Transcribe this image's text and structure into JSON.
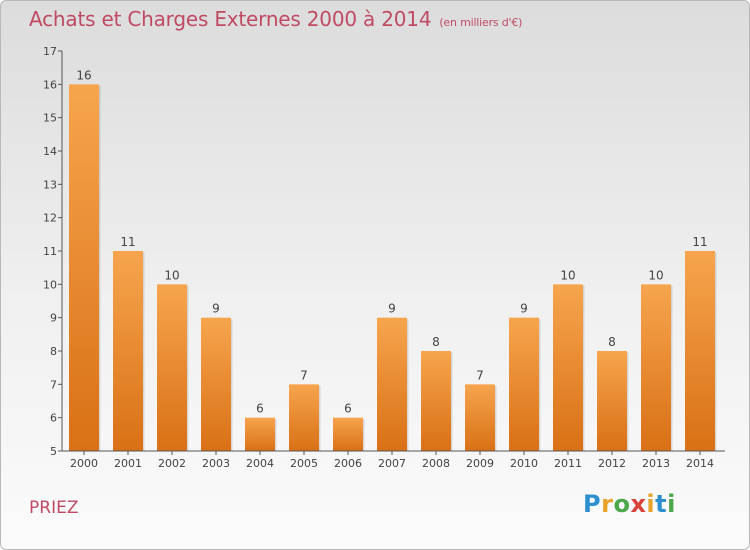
{
  "header": {
    "title": "Achats et Charges Externes 2000 à 2014",
    "unit": "(en milliers d'€)"
  },
  "footer": {
    "commune": "PRIEZ",
    "logo": "Proxiti",
    "logo_letters": [
      "P",
      "r",
      "o",
      "x",
      "i",
      "t",
      "i"
    ]
  },
  "colors": {
    "bar_top": "#f6a54e",
    "bar_bottom": "#d97015",
    "title": "#c04a63"
  },
  "chart_data": {
    "type": "bar",
    "title": "Achats et Charges Externes 2000 à 2014",
    "subtitle": "(en milliers d'€)",
    "xlabel": "",
    "ylabel": "",
    "categories": [
      "2000",
      "2001",
      "2002",
      "2003",
      "2004",
      "2005",
      "2006",
      "2007",
      "2008",
      "2009",
      "2010",
      "2011",
      "2012",
      "2013",
      "2014"
    ],
    "values": [
      16,
      11,
      10,
      9,
      6,
      7,
      6,
      9,
      8,
      7,
      9,
      10,
      8,
      10,
      11
    ],
    "ylim": [
      5,
      17
    ],
    "yticks": [
      5,
      6,
      7,
      8,
      9,
      10,
      11,
      12,
      13,
      14,
      15,
      16,
      17
    ],
    "grid": false,
    "data_labels": true
  }
}
